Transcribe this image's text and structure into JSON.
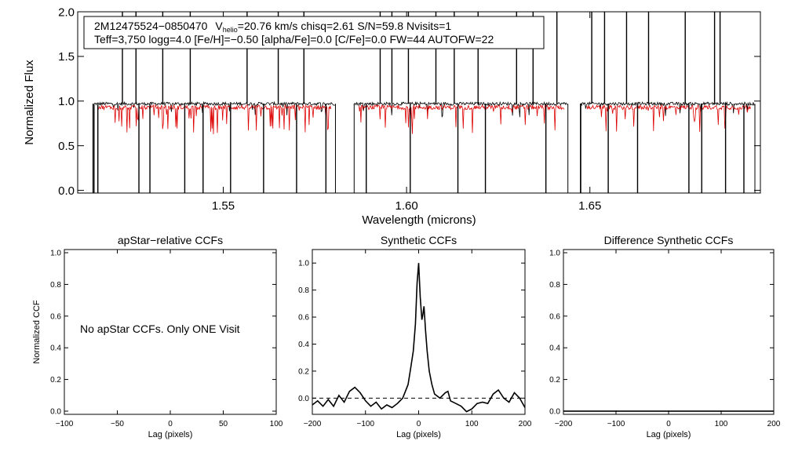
{
  "colors": {
    "observed": "#000000",
    "model": "#dd0000",
    "axis": "#000000"
  },
  "chart_data": [
    {
      "type": "line",
      "id": "spectrum",
      "title": "",
      "xlabel": "Wavelength (microns)",
      "ylabel": "Normalized Flux",
      "xlim": [
        1.5103,
        1.6965
      ],
      "ylim": [
        -0.03,
        2.0
      ],
      "xticks": [
        1.55,
        1.6,
        1.65
      ],
      "xtick_labels": [
        "1.55",
        "1.60",
        "1.65"
      ],
      "yticks": [
        0.0,
        0.5,
        1.0,
        1.5,
        2.0
      ],
      "ytick_labels": [
        "0.0",
        "0.5",
        "1.0",
        "1.5",
        "2.0"
      ],
      "annotation": {
        "line1_name": "2M12475524−0850470",
        "line1_v": "V",
        "line1_vsub": "helio",
        "line1_rest": "=20.76 km/s  chisq=2.61  S/N=59.8  Nvisits=1",
        "line2": "Teff=3,750 logg=4.0 [Fe/H]=−0.50 [alpha/Fe]=0.0 [C/Fe]=0.0 FW=44 AUTOFW=22"
      },
      "chips": [
        [
          1.5148,
          1.5806
        ],
        [
          1.5857,
          1.644
        ],
        [
          1.6474,
          1.695
        ]
      ],
      "model_chips": [
        [
          1.516,
          1.5795
        ],
        [
          1.587,
          1.643
        ],
        [
          1.649,
          1.694
        ]
      ],
      "series": [
        {
          "name": "observed",
          "baseline": 0.97,
          "noise": 0.035
        },
        {
          "name": "model",
          "baseline": 0.93,
          "noise": 0.05
        }
      ],
      "emission_spikes": [
        1.5225,
        1.5262,
        1.5335,
        1.541,
        1.5565,
        1.565,
        1.572,
        1.5928,
        1.596,
        1.6005,
        1.608,
        1.613,
        1.6195,
        1.63,
        1.6345,
        1.641,
        1.6505,
        1.654,
        1.66,
        1.666,
        1.676,
        1.684,
        1.6855
      ],
      "absorption_spikes": [
        1.5145,
        1.5158,
        1.527,
        1.53,
        1.5395,
        1.5445,
        1.552,
        1.561,
        1.57,
        1.578,
        1.589,
        1.601,
        1.614,
        1.6215,
        1.638,
        1.6475,
        1.655,
        1.663,
        1.677,
        1.6805,
        1.687,
        1.692
      ]
    },
    {
      "type": "line",
      "id": "apstar",
      "title": "apStar−relative CCFs",
      "xlabel": "Lag (pixels)",
      "ylabel": "Normalized CCF",
      "xlim": [
        -100,
        100
      ],
      "ylim": [
        -0.02,
        1.02
      ],
      "xticks": [
        -100,
        -50,
        0,
        50,
        100
      ],
      "xtick_labels": [
        "−100",
        "−50",
        "0",
        "50",
        "100"
      ],
      "yticks": [
        0.0,
        0.2,
        0.4,
        0.6,
        0.8,
        1.0
      ],
      "ytick_labels": [
        "0.0",
        "0.2",
        "0.4",
        "0.6",
        "0.8",
        "1.0"
      ],
      "message": "No apStar CCFs.  Only ONE Visit",
      "series": []
    },
    {
      "type": "line",
      "id": "synthetic",
      "title": "Synthetic CCFs",
      "xlabel": "Lag (pixels)",
      "ylabel": "",
      "xlim": [
        -200,
        200
      ],
      "ylim": [
        -0.12,
        1.1
      ],
      "xticks": [
        -200,
        -100,
        0,
        100,
        200
      ],
      "xtick_labels": [
        "−200",
        "−100",
        "0",
        "100",
        "200"
      ],
      "yticks": [
        0.0,
        0.2,
        0.4,
        0.6,
        0.8,
        1.0
      ],
      "ytick_labels": [
        "0.0",
        "0.2",
        "0.4",
        "0.6",
        "0.8",
        "1.0"
      ],
      "reference_line": 0.0,
      "series": [
        {
          "name": "ccf",
          "x": [
            -200,
            -190,
            -180,
            -170,
            -160,
            -150,
            -140,
            -130,
            -120,
            -110,
            -100,
            -90,
            -80,
            -70,
            -60,
            -50,
            -40,
            -30,
            -20,
            -15,
            -10,
            -6,
            -3,
            0,
            3,
            6,
            8,
            10,
            13,
            16,
            20,
            25,
            30,
            40,
            50,
            55,
            60,
            70,
            80,
            90,
            100,
            110,
            120,
            130,
            140,
            150,
            160,
            170,
            180,
            190,
            200
          ],
          "y": [
            -0.05,
            -0.02,
            -0.06,
            -0.01,
            -0.06,
            0.02,
            -0.03,
            0.05,
            0.08,
            0.04,
            -0.02,
            -0.06,
            -0.03,
            -0.08,
            -0.05,
            -0.07,
            -0.04,
            0.0,
            0.1,
            0.22,
            0.35,
            0.55,
            0.85,
            1.0,
            0.75,
            0.58,
            0.62,
            0.68,
            0.5,
            0.35,
            0.2,
            0.1,
            0.03,
            0.0,
            0.04,
            0.05,
            -0.02,
            -0.04,
            -0.06,
            -0.1,
            -0.08,
            -0.04,
            -0.03,
            -0.04,
            0.03,
            0.06,
            0.0,
            -0.03,
            0.04,
            0.0,
            -0.07
          ]
        }
      ]
    },
    {
      "type": "line",
      "id": "difference",
      "title": "Difference Synthetic CCFs",
      "xlabel": "Lag (pixels)",
      "ylabel": "",
      "xlim": [
        -200,
        200
      ],
      "ylim": [
        -0.02,
        1.02
      ],
      "xticks": [
        -200,
        -100,
        0,
        100,
        200
      ],
      "xtick_labels": [
        "−200",
        "−100",
        "0",
        "100",
        "200"
      ],
      "yticks": [
        0.0,
        0.2,
        0.4,
        0.6,
        0.8,
        1.0
      ],
      "ytick_labels": [
        "0.0",
        "0.2",
        "0.4",
        "0.6",
        "0.8",
        "1.0"
      ],
      "series": [
        {
          "name": "difference",
          "x": [
            -200,
            200
          ],
          "y": [
            0.0,
            0.0
          ]
        }
      ]
    }
  ]
}
